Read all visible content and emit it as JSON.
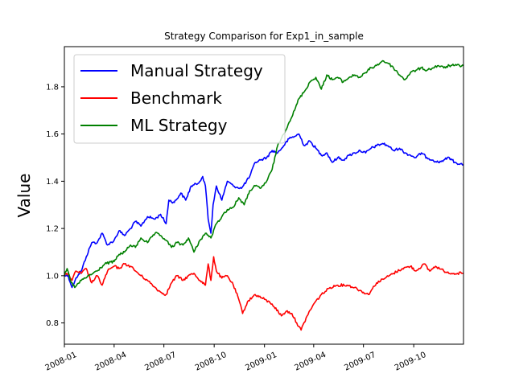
{
  "chart_data": {
    "type": "line",
    "title": "Strategy Comparison for Exp1_in_sample",
    "xlabel": "",
    "ylabel": "Value",
    "xlim": [
      "2008-01-01",
      "2009-12-31"
    ],
    "ylim": [
      0.71,
      1.97
    ],
    "x_ticks": [
      "2008-01",
      "2008-04",
      "2008-07",
      "2008-10",
      "2009-01",
      "2009-04",
      "2009-07",
      "2009-10"
    ],
    "y_ticks": [
      0.8,
      1.0,
      1.2,
      1.4,
      1.6,
      1.8
    ],
    "y_tick_labels": [
      "0.8",
      "1.0",
      "1.2",
      "1.4",
      "1.6",
      "1.8"
    ],
    "grid": false,
    "legend_position": "upper-left",
    "series": [
      {
        "name": "Manual Strategy",
        "color": "#0000ff",
        "points": [
          [
            "2008-01-01",
            1.0
          ],
          [
            "2008-01-08",
            1.0
          ],
          [
            "2008-01-15",
            0.95
          ],
          [
            "2008-01-22",
            0.99
          ],
          [
            "2008-02-01",
            1.02
          ],
          [
            "2008-02-10",
            1.08
          ],
          [
            "2008-02-20",
            1.14
          ],
          [
            "2008-03-01",
            1.14
          ],
          [
            "2008-03-10",
            1.18
          ],
          [
            "2008-03-20",
            1.13
          ],
          [
            "2008-04-01",
            1.15
          ],
          [
            "2008-04-10",
            1.19
          ],
          [
            "2008-04-20",
            1.17
          ],
          [
            "2008-05-01",
            1.2
          ],
          [
            "2008-05-10",
            1.23
          ],
          [
            "2008-05-20",
            1.21
          ],
          [
            "2008-06-01",
            1.25
          ],
          [
            "2008-06-15",
            1.24
          ],
          [
            "2008-06-25",
            1.26
          ],
          [
            "2008-07-05",
            1.22
          ],
          [
            "2008-07-10",
            1.32
          ],
          [
            "2008-07-20",
            1.31
          ],
          [
            "2008-08-01",
            1.35
          ],
          [
            "2008-08-10",
            1.32
          ],
          [
            "2008-08-20",
            1.38
          ],
          [
            "2008-09-01",
            1.39
          ],
          [
            "2008-09-10",
            1.42
          ],
          [
            "2008-09-15",
            1.38
          ],
          [
            "2008-09-20",
            1.24
          ],
          [
            "2008-09-25",
            1.18
          ],
          [
            "2008-09-29",
            1.3
          ],
          [
            "2008-10-05",
            1.38
          ],
          [
            "2008-10-15",
            1.32
          ],
          [
            "2008-10-25",
            1.4
          ],
          [
            "2008-11-05",
            1.38
          ],
          [
            "2008-11-20",
            1.37
          ],
          [
            "2008-12-05",
            1.42
          ],
          [
            "2008-12-15",
            1.48
          ],
          [
            "2008-12-25",
            1.49
          ],
          [
            "2009-01-05",
            1.5
          ],
          [
            "2009-01-15",
            1.53
          ],
          [
            "2009-01-25",
            1.52
          ],
          [
            "2009-02-05",
            1.55
          ],
          [
            "2009-02-15",
            1.58
          ],
          [
            "2009-02-25",
            1.59
          ],
          [
            "2009-03-05",
            1.6
          ],
          [
            "2009-03-15",
            1.55
          ],
          [
            "2009-03-25",
            1.57
          ],
          [
            "2009-04-05",
            1.54
          ],
          [
            "2009-04-15",
            1.51
          ],
          [
            "2009-04-25",
            1.52
          ],
          [
            "2009-05-05",
            1.48
          ],
          [
            "2009-05-15",
            1.5
          ],
          [
            "2009-05-25",
            1.49
          ],
          [
            "2009-06-05",
            1.51
          ],
          [
            "2009-06-15",
            1.52
          ],
          [
            "2009-06-25",
            1.53
          ],
          [
            "2009-07-05",
            1.52
          ],
          [
            "2009-07-15",
            1.54
          ],
          [
            "2009-07-25",
            1.55
          ],
          [
            "2009-08-05",
            1.56
          ],
          [
            "2009-08-15",
            1.55
          ],
          [
            "2009-08-25",
            1.53
          ],
          [
            "2009-09-05",
            1.54
          ],
          [
            "2009-09-15",
            1.52
          ],
          [
            "2009-09-25",
            1.51
          ],
          [
            "2009-10-05",
            1.5
          ],
          [
            "2009-10-15",
            1.52
          ],
          [
            "2009-10-25",
            1.5
          ],
          [
            "2009-11-05",
            1.49
          ],
          [
            "2009-11-15",
            1.48
          ],
          [
            "2009-11-25",
            1.49
          ],
          [
            "2009-12-05",
            1.5
          ],
          [
            "2009-12-15",
            1.48
          ],
          [
            "2009-12-31",
            1.47
          ]
        ]
      },
      {
        "name": "Benchmark",
        "color": "#ff0000",
        "points": [
          [
            "2008-01-01",
            1.0
          ],
          [
            "2008-01-08",
            1.01
          ],
          [
            "2008-01-15",
            0.98
          ],
          [
            "2008-01-22",
            1.02
          ],
          [
            "2008-02-01",
            1.01
          ],
          [
            "2008-02-10",
            1.03
          ],
          [
            "2008-02-20",
            0.97
          ],
          [
            "2008-03-01",
            1.0
          ],
          [
            "2008-03-10",
            0.96
          ],
          [
            "2008-03-20",
            1.02
          ],
          [
            "2008-04-01",
            1.04
          ],
          [
            "2008-04-10",
            1.03
          ],
          [
            "2008-04-20",
            1.05
          ],
          [
            "2008-05-01",
            1.04
          ],
          [
            "2008-05-10",
            1.02
          ],
          [
            "2008-05-20",
            1.0
          ],
          [
            "2008-06-01",
            0.98
          ],
          [
            "2008-06-15",
            0.95
          ],
          [
            "2008-06-25",
            0.93
          ],
          [
            "2008-07-05",
            0.92
          ],
          [
            "2008-07-15",
            0.97
          ],
          [
            "2008-07-25",
            1.0
          ],
          [
            "2008-08-05",
            0.98
          ],
          [
            "2008-08-15",
            1.0
          ],
          [
            "2008-08-25",
            1.01
          ],
          [
            "2008-09-05",
            0.98
          ],
          [
            "2008-09-15",
            0.96
          ],
          [
            "2008-09-20",
            1.05
          ],
          [
            "2008-09-25",
            0.98
          ],
          [
            "2008-09-30",
            1.08
          ],
          [
            "2008-10-05",
            1.02
          ],
          [
            "2008-10-15",
            0.99
          ],
          [
            "2008-10-25",
            1.0
          ],
          [
            "2008-11-05",
            0.96
          ],
          [
            "2008-11-15",
            0.9
          ],
          [
            "2008-11-22",
            0.84
          ],
          [
            "2008-12-01",
            0.89
          ],
          [
            "2008-12-15",
            0.92
          ],
          [
            "2009-01-01",
            0.9
          ],
          [
            "2009-01-15",
            0.88
          ],
          [
            "2009-02-01",
            0.83
          ],
          [
            "2009-02-10",
            0.85
          ],
          [
            "2009-02-20",
            0.84
          ],
          [
            "2009-03-01",
            0.8
          ],
          [
            "2009-03-09",
            0.77
          ],
          [
            "2009-03-20",
            0.83
          ],
          [
            "2009-04-01",
            0.88
          ],
          [
            "2009-04-15",
            0.92
          ],
          [
            "2009-05-01",
            0.95
          ],
          [
            "2009-05-15",
            0.96
          ],
          [
            "2009-06-01",
            0.96
          ],
          [
            "2009-06-15",
            0.95
          ],
          [
            "2009-07-01",
            0.93
          ],
          [
            "2009-07-10",
            0.92
          ],
          [
            "2009-07-25",
            0.97
          ],
          [
            "2009-08-10",
            0.99
          ],
          [
            "2009-08-25",
            1.01
          ],
          [
            "2009-09-10",
            1.03
          ],
          [
            "2009-09-25",
            1.04
          ],
          [
            "2009-10-05",
            1.02
          ],
          [
            "2009-10-20",
            1.05
          ],
          [
            "2009-10-30",
            1.02
          ],
          [
            "2009-11-10",
            1.04
          ],
          [
            "2009-11-25",
            1.02
          ],
          [
            "2009-12-10",
            1.01
          ],
          [
            "2009-12-20",
            1.01
          ],
          [
            "2009-12-31",
            1.01
          ]
        ]
      },
      {
        "name": "ML Strategy",
        "color": "#008000",
        "points": [
          [
            "2008-01-01",
            1.0
          ],
          [
            "2008-01-06",
            1.03
          ],
          [
            "2008-01-12",
            0.98
          ],
          [
            "2008-01-20",
            0.95
          ],
          [
            "2008-02-01",
            0.98
          ],
          [
            "2008-02-15",
            1.0
          ],
          [
            "2008-03-01",
            1.02
          ],
          [
            "2008-03-15",
            1.05
          ],
          [
            "2008-04-01",
            1.06
          ],
          [
            "2008-04-10",
            1.09
          ],
          [
            "2008-04-20",
            1.1
          ],
          [
            "2008-05-01",
            1.13
          ],
          [
            "2008-05-10",
            1.12
          ],
          [
            "2008-05-20",
            1.16
          ],
          [
            "2008-06-01",
            1.14
          ],
          [
            "2008-06-15",
            1.18
          ],
          [
            "2008-06-25",
            1.17
          ],
          [
            "2008-07-05",
            1.15
          ],
          [
            "2008-07-15",
            1.12
          ],
          [
            "2008-07-25",
            1.14
          ],
          [
            "2008-08-05",
            1.13
          ],
          [
            "2008-08-15",
            1.16
          ],
          [
            "2008-08-25",
            1.1
          ],
          [
            "2008-09-05",
            1.15
          ],
          [
            "2008-09-15",
            1.18
          ],
          [
            "2008-09-25",
            1.16
          ],
          [
            "2008-10-05",
            1.22
          ],
          [
            "2008-10-15",
            1.25
          ],
          [
            "2008-10-25",
            1.28
          ],
          [
            "2008-11-05",
            1.29
          ],
          [
            "2008-11-15",
            1.33
          ],
          [
            "2008-11-25",
            1.3
          ],
          [
            "2008-12-05",
            1.36
          ],
          [
            "2008-12-15",
            1.38
          ],
          [
            "2008-12-25",
            1.37
          ],
          [
            "2009-01-05",
            1.4
          ],
          [
            "2009-01-15",
            1.45
          ],
          [
            "2009-01-25",
            1.55
          ],
          [
            "2009-02-05",
            1.6
          ],
          [
            "2009-02-15",
            1.65
          ],
          [
            "2009-02-25",
            1.7
          ],
          [
            "2009-03-05",
            1.75
          ],
          [
            "2009-03-15",
            1.78
          ],
          [
            "2009-03-25",
            1.82
          ],
          [
            "2009-04-05",
            1.84
          ],
          [
            "2009-04-15",
            1.79
          ],
          [
            "2009-04-25",
            1.85
          ],
          [
            "2009-05-05",
            1.83
          ],
          [
            "2009-05-15",
            1.84
          ],
          [
            "2009-05-25",
            1.82
          ],
          [
            "2009-06-05",
            1.84
          ],
          [
            "2009-06-15",
            1.85
          ],
          [
            "2009-06-25",
            1.84
          ],
          [
            "2009-07-05",
            1.86
          ],
          [
            "2009-07-15",
            1.88
          ],
          [
            "2009-07-25",
            1.89
          ],
          [
            "2009-08-05",
            1.91
          ],
          [
            "2009-08-15",
            1.9
          ],
          [
            "2009-08-25",
            1.88
          ],
          [
            "2009-09-05",
            1.85
          ],
          [
            "2009-09-15",
            1.83
          ],
          [
            "2009-09-25",
            1.86
          ],
          [
            "2009-10-05",
            1.87
          ],
          [
            "2009-10-15",
            1.88
          ],
          [
            "2009-10-25",
            1.87
          ],
          [
            "2009-11-05",
            1.88
          ],
          [
            "2009-11-15",
            1.89
          ],
          [
            "2009-11-25",
            1.88
          ],
          [
            "2009-12-05",
            1.89
          ],
          [
            "2009-12-15",
            1.89
          ],
          [
            "2009-12-31",
            1.89
          ]
        ]
      }
    ]
  }
}
